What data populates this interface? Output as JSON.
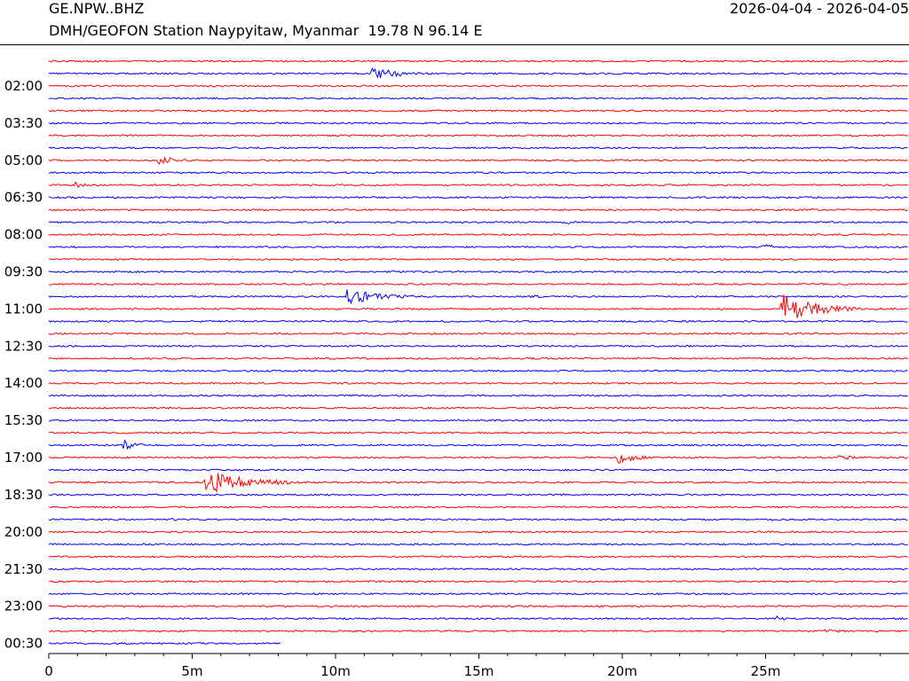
{
  "header": {
    "station": "GE.NPW..BHZ",
    "description": "DMH/GEOFON Station Naypyitaw, Myanmar  19.78 N 96.14 E",
    "date_range": "2026-04-04 - 2026-04-05"
  },
  "chart_data": {
    "type": "line",
    "title": "GE.NPW..BHZ",
    "subtitle": "DMH/GEOFON Station Naypyitaw, Myanmar  19.78 N 96.14 E",
    "xlabel": "",
    "ylabel": "",
    "x_ticks": [
      "0",
      "5m",
      "10m",
      "15m",
      "20m",
      "25m"
    ],
    "x_tick_values": [
      0,
      5,
      10,
      15,
      20,
      25
    ],
    "xlim": [
      0,
      30
    ],
    "grid": false,
    "y_tick_labels": [
      "02:00",
      "03:30",
      "05:00",
      "06:30",
      "08:00",
      "09:30",
      "11:00",
      "12:30",
      "14:00",
      "15:30",
      "17:00",
      "18:30",
      "20:00",
      "21:30",
      "23:00",
      "00:30"
    ],
    "row_count": 48,
    "colors": {
      "odd_rows": "#ff0000",
      "even_rows": "#0000ff"
    },
    "events": [
      {
        "row": 1,
        "start_min": 11.2,
        "amplitude": 0.9,
        "duration_min": 3.5
      },
      {
        "row": 8,
        "start_min": 3.8,
        "amplitude": 0.7,
        "duration_min": 2.0
      },
      {
        "row": 10,
        "start_min": 0.9,
        "amplitude": 0.5,
        "duration_min": 1.2
      },
      {
        "row": 13,
        "start_min": 18.0,
        "amplitude": 0.4,
        "duration_min": 1.2
      },
      {
        "row": 15,
        "start_min": 24.8,
        "amplitude": 0.6,
        "duration_min": 1.5
      },
      {
        "row": 19,
        "start_min": 10.4,
        "amplitude": 1.1,
        "duration_min": 4.0
      },
      {
        "row": 19,
        "start_min": 16.7,
        "amplitude": 0.6,
        "duration_min": 1.0
      },
      {
        "row": 20,
        "start_min": 25.5,
        "amplitude": 2.6,
        "duration_min": 3.5
      },
      {
        "row": 31,
        "start_min": 2.6,
        "amplitude": 0.8,
        "duration_min": 1.4
      },
      {
        "row": 32,
        "start_min": 19.8,
        "amplitude": 1.0,
        "duration_min": 2.0
      },
      {
        "row": 32,
        "start_min": 27.5,
        "amplitude": 0.4,
        "duration_min": 2.5
      },
      {
        "row": 34,
        "start_min": 5.4,
        "amplitude": 2.0,
        "duration_min": 4.5
      },
      {
        "row": 37,
        "start_min": 4.2,
        "amplitude": 0.4,
        "duration_min": 0.8
      },
      {
        "row": 45,
        "start_min": 25.4,
        "amplitude": 0.4,
        "duration_min": 1.0
      },
      {
        "row": 46,
        "start_min": 27.0,
        "amplitude": 0.3,
        "duration_min": 3.0
      }
    ],
    "last_row_end_min": 8.1
  }
}
